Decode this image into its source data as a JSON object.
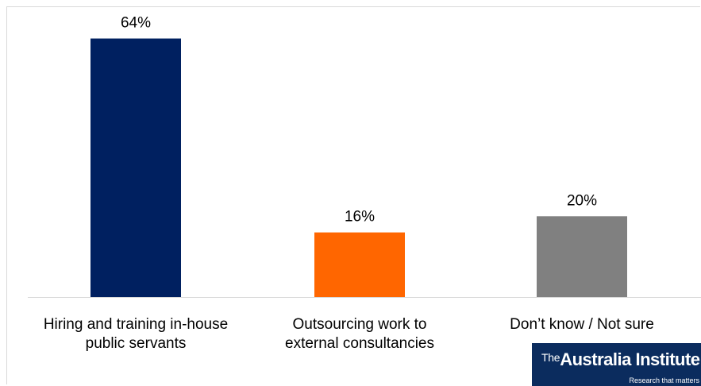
{
  "chart_data": {
    "type": "bar",
    "categories": [
      [
        "Hiring and training in-house",
        "public servants"
      ],
      [
        "Outsourcing work to",
        "external consultancies"
      ],
      [
        "Don’t know / Not sure"
      ]
    ],
    "values": [
      64,
      16,
      20
    ],
    "data_labels": [
      "64%",
      "16%",
      "20%"
    ],
    "colors": [
      "#002060",
      "#ff6600",
      "#808080"
    ],
    "ylim": [
      0,
      70
    ],
    "grid": false,
    "legend": "none"
  },
  "branding": {
    "logo_prefix": "The",
    "logo_name": "Australia Institute",
    "tagline": "Research that matters"
  }
}
